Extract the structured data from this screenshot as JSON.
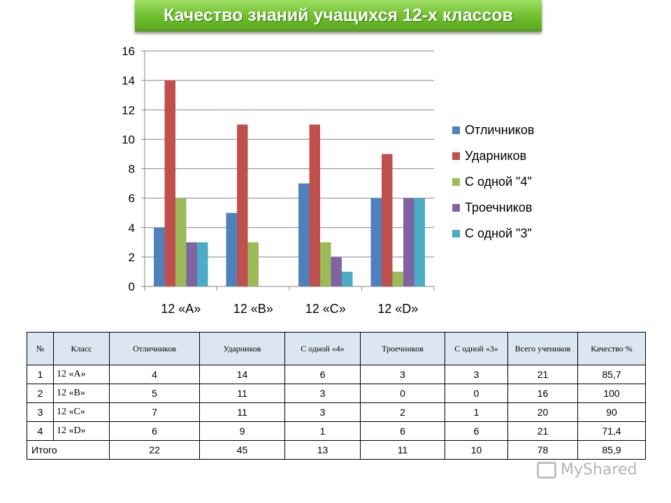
{
  "title": "Качество знаний учащихся 12-х классов",
  "chart_data": {
    "type": "bar",
    "categories": [
      "12 «A»",
      "12 «B»",
      "12 «C»",
      "12 «D»"
    ],
    "series": [
      {
        "name": "Отличников",
        "values": [
          4,
          5,
          7,
          6
        ],
        "color": "#4f81bd"
      },
      {
        "name": "Ударников",
        "values": [
          14,
          11,
          11,
          9
        ],
        "color": "#c0504d"
      },
      {
        "name": "С одной \"4\"",
        "values": [
          6,
          3,
          3,
          1
        ],
        "color": "#9bbb59"
      },
      {
        "name": "Троечников",
        "values": [
          3,
          0,
          2,
          6
        ],
        "color": "#8064a2"
      },
      {
        "name": "С одной \"3\"",
        "values": [
          3,
          0,
          1,
          6
        ],
        "color": "#4bacc6"
      }
    ],
    "yticks": [
      "0",
      "2",
      "4",
      "6",
      "8",
      "10",
      "12",
      "14",
      "16"
    ],
    "ylim": [
      0,
      16
    ],
    "grid": true,
    "legend": "right"
  },
  "table": {
    "headers": [
      "№",
      "Класс",
      "Отличников",
      "Ударников",
      "С одной «4»",
      "Троечников",
      "С одной «3»",
      "Всего учеников",
      "Качество %"
    ],
    "rows": [
      [
        "1",
        "12 «А»",
        "4",
        "14",
        "6",
        "3",
        "3",
        "21",
        "85,7"
      ],
      [
        "2",
        "12 «В»",
        "5",
        "11",
        "3",
        "0",
        "0",
        "16",
        "100"
      ],
      [
        "3",
        "12 «С»",
        "7",
        "11",
        "3",
        "2",
        "1",
        "20",
        "90"
      ],
      [
        "4",
        "12 «D»",
        "6",
        "9",
        "1",
        "6",
        "6",
        "21",
        "71,4"
      ]
    ],
    "total": [
      "Итого",
      "22",
      "45",
      "13",
      "11",
      "10",
      "78",
      "85,9"
    ]
  },
  "watermark": "MyShared"
}
